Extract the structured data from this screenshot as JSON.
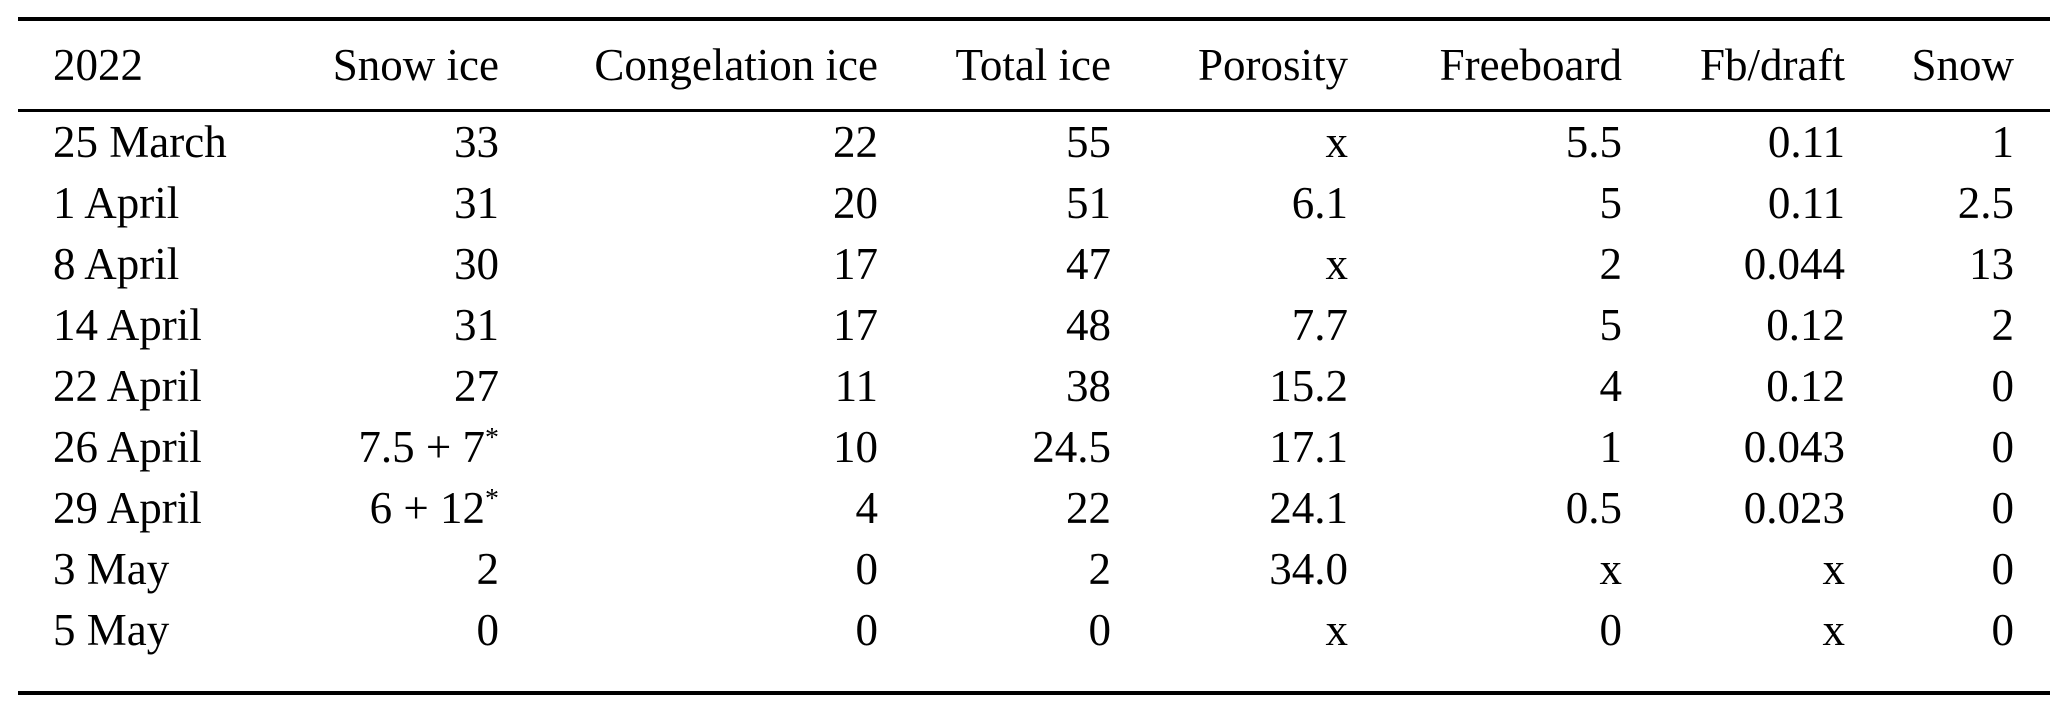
{
  "page": {
    "background_color": "#ffffff",
    "text_color": "#000000",
    "rule_color": "#000000"
  },
  "table": {
    "columns": [
      "2022",
      "Snow ice",
      "Congelation ice",
      "Total ice",
      "Porosity",
      "Freeboard",
      "Fb/draft",
      "Snow"
    ],
    "rows": [
      [
        "25 March",
        "33",
        "22",
        "55",
        "x",
        "5.5",
        "0.11",
        "1"
      ],
      [
        "1 April",
        "31",
        "20",
        "51",
        "6.1",
        "5",
        "0.11",
        "2.5"
      ],
      [
        "8 April",
        "30",
        "17",
        "47",
        "x",
        "2",
        "0.044",
        "13"
      ],
      [
        "14 April",
        "31",
        "17",
        "48",
        "7.7",
        "5",
        "0.12",
        "2"
      ],
      [
        "22 April",
        "27",
        "11",
        "38",
        "15.2",
        "4",
        "0.12",
        "0"
      ],
      [
        "26 April",
        "7.5 + 7*",
        "10",
        "24.5",
        "17.1",
        "1",
        "0.043",
        "0"
      ],
      [
        "29 April",
        "6 + 12*",
        "4",
        "22",
        "24.1",
        "0.5",
        "0.023",
        "0"
      ],
      [
        "3 May",
        "2",
        "0",
        "2",
        "34.0",
        "x",
        "x",
        "0"
      ],
      [
        "5 May",
        "0",
        "0",
        "0",
        "x",
        "0",
        "x",
        "0"
      ]
    ],
    "missing_value_symbol": "x",
    "footnote_marker": "*"
  }
}
